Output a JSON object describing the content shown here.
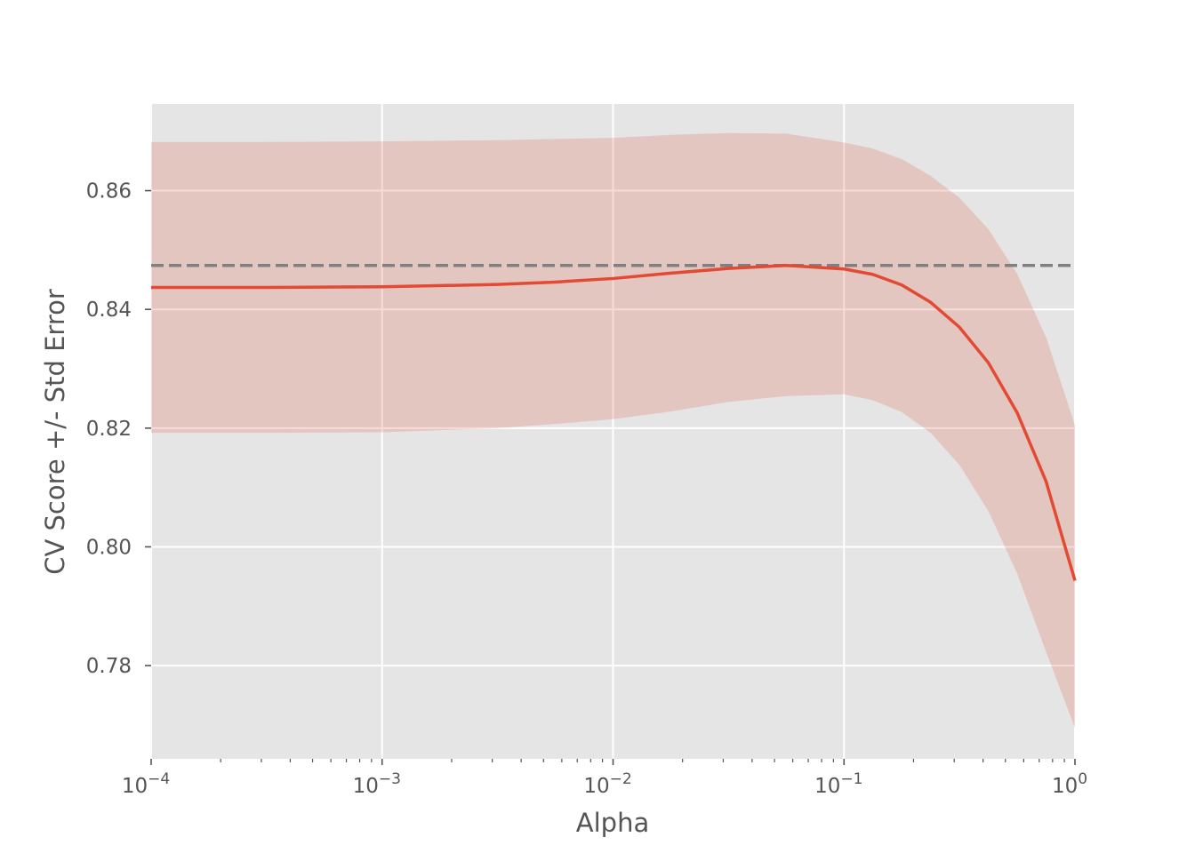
{
  "chart_data": {
    "type": "line",
    "title": "",
    "xlabel": "Alpha",
    "ylabel": "CV Score +/- Std Error",
    "x_scale": "log",
    "xlim": [
      0.0001,
      1
    ],
    "ylim": [
      0.7643,
      0.8746
    ],
    "grid": true,
    "background": "#e5e5e5",
    "colors": {
      "line": "#e24a33",
      "band": "#e24a33",
      "reference": "#808080",
      "grid": "#ffffff"
    },
    "x_ticks": [
      {
        "value": 0.0001,
        "base": "10",
        "exp": "−4"
      },
      {
        "value": 0.001,
        "base": "10",
        "exp": "−3"
      },
      {
        "value": 0.01,
        "base": "10",
        "exp": "−2"
      },
      {
        "value": 0.1,
        "base": "10",
        "exp": "−1"
      },
      {
        "value": 1,
        "base": "10",
        "exp": "0"
      }
    ],
    "y_ticks": [
      {
        "value": 0.78,
        "label": "0.78"
      },
      {
        "value": 0.8,
        "label": "0.80"
      },
      {
        "value": 0.82,
        "label": "0.82"
      },
      {
        "value": 0.84,
        "label": "0.84"
      },
      {
        "value": 0.86,
        "label": "0.86"
      }
    ],
    "reference_line": {
      "y": 0.8474,
      "style": "dashed"
    },
    "series": [
      {
        "x": [
          0.0001,
          0.000316,
          0.001,
          0.00316,
          0.00562,
          0.01,
          0.0178,
          0.0316,
          0.0562,
          0.1,
          0.133,
          0.178,
          0.237,
          0.316,
          0.422,
          0.562,
          0.75,
          1.0
        ],
        "y": [
          0.8437,
          0.8437,
          0.8438,
          0.8442,
          0.8446,
          0.8452,
          0.8461,
          0.8469,
          0.8474,
          0.8468,
          0.8459,
          0.8441,
          0.8412,
          0.837,
          0.831,
          0.8226,
          0.811,
          0.7943
        ],
        "lower": [
          0.8192,
          0.8192,
          0.8193,
          0.82,
          0.8207,
          0.8215,
          0.8228,
          0.8244,
          0.8254,
          0.8257,
          0.8247,
          0.8227,
          0.8192,
          0.8138,
          0.806,
          0.7955,
          0.7823,
          0.7695
        ],
        "upper": [
          0.8682,
          0.8682,
          0.8683,
          0.8685,
          0.8687,
          0.8689,
          0.8694,
          0.8697,
          0.8696,
          0.8681,
          0.8671,
          0.8653,
          0.8625,
          0.8588,
          0.8535,
          0.846,
          0.8353,
          0.8205
        ]
      }
    ]
  }
}
